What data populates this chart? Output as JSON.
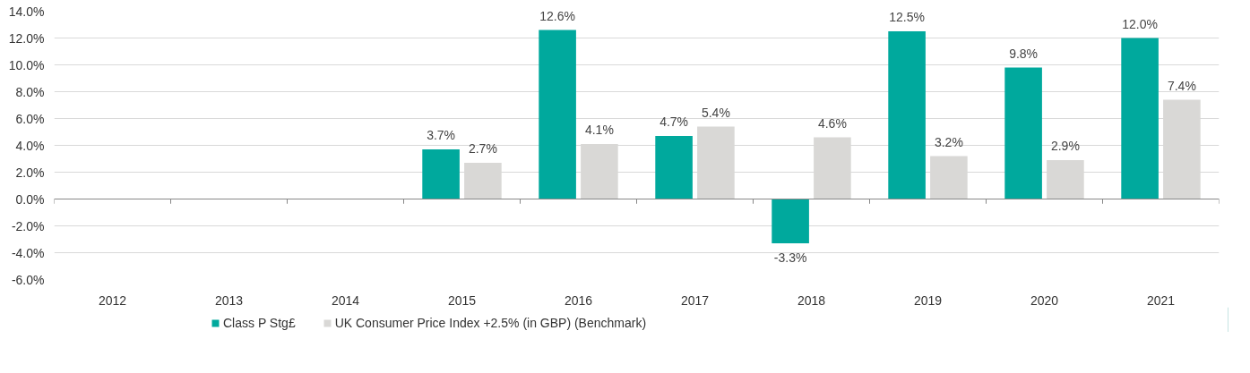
{
  "chart_data": {
    "type": "bar",
    "categories": [
      "2012",
      "2013",
      "2014",
      "2015",
      "2016",
      "2017",
      "2018",
      "2019",
      "2020",
      "2021"
    ],
    "series": [
      {
        "name": "Class P Stg£",
        "color": "#00a99d",
        "values": [
          null,
          null,
          null,
          3.7,
          12.6,
          4.7,
          -3.3,
          12.5,
          9.8,
          12.0
        ],
        "value_labels": [
          null,
          null,
          null,
          "3.7%",
          "12.6%",
          "4.7%",
          "-3.3%",
          "12.5%",
          "9.8%",
          "12.0%"
        ]
      },
      {
        "name": "UK Consumer Price Index +2.5% (in GBP) (Benchmark)",
        "color": "#d9d8d6",
        "values": [
          null,
          null,
          null,
          2.7,
          4.1,
          5.4,
          4.6,
          3.2,
          2.9,
          7.4
        ],
        "value_labels": [
          null,
          null,
          null,
          "2.7%",
          "4.1%",
          "5.4%",
          "4.6%",
          "3.2%",
          "2.9%",
          "7.4%"
        ]
      }
    ],
    "ylim": [
      -6,
      14
    ],
    "yticks": [
      {
        "value": -6,
        "label": "-6.0%"
      },
      {
        "value": -4,
        "label": "-4.0%"
      },
      {
        "value": -2,
        "label": "-2.0%"
      },
      {
        "value": 0,
        "label": "0.0%"
      },
      {
        "value": 2,
        "label": "2.0%"
      },
      {
        "value": 4,
        "label": "4.0%"
      },
      {
        "value": 6,
        "label": "6.0%"
      },
      {
        "value": 8,
        "label": "8.0%"
      },
      {
        "value": 10,
        "label": "10.0%"
      },
      {
        "value": 12,
        "label": "12.0%"
      },
      {
        "value": 14,
        "label": "14.0%"
      }
    ],
    "grid": "y",
    "legend": "bottom left"
  }
}
